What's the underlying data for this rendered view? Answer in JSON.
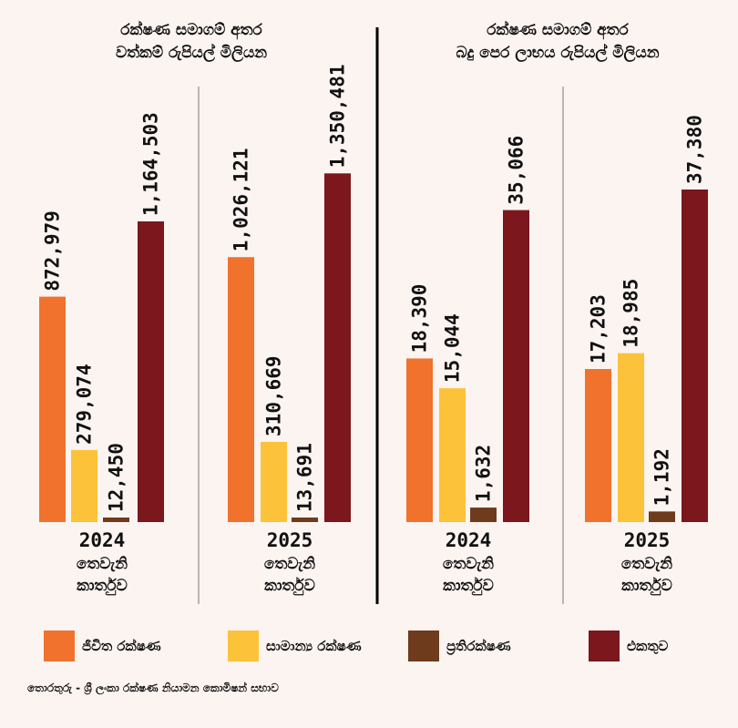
{
  "colors": {
    "background": "#fcf4f1",
    "life": "#f0722d",
    "general": "#fcc33a",
    "reinsurance": "#6e3b1d",
    "total": "#7b171d"
  },
  "legend": [
    {
      "key": "life",
      "label": "ජීවිත රක්ෂණ"
    },
    {
      "key": "general",
      "label": "සාමාන්‍ය රක්ෂණ"
    },
    {
      "key": "reinsurance",
      "label": "ප්‍රතිරක්ෂණ"
    },
    {
      "key": "total",
      "label": "එකතුව"
    }
  ],
  "source": "තොරතුරු - ශ්‍රී ලංකා රක්ෂණ නියාමන කොමිෂන් සභාව",
  "chart_data": [
    {
      "type": "bar",
      "title": [
        "රක්ෂණ සමාගම් අතර",
        "වත්කම් රුපියල් මිලියන"
      ],
      "ylim": [
        0,
        1400000
      ],
      "series": [
        "ජීවිත රක්ෂණ",
        "සාමාන්‍ය රක්ෂණ",
        "ප්‍රතිරක්ෂණ",
        "එකතුව"
      ],
      "groups": [
        {
          "year": "2024",
          "label": [
            "තෙවැනි",
            "කාර්තුව"
          ],
          "values": [
            872979,
            279074,
            12450,
            1164503
          ],
          "labels": [
            "872,979",
            "279,074",
            "12,450",
            "1,164,503"
          ]
        },
        {
          "year": "2025",
          "label": [
            "තෙවැනි",
            "කාර්තුව"
          ],
          "values": [
            1026121,
            310669,
            13691,
            1350481
          ],
          "labels": [
            "1,026,121",
            "310,669",
            "13,691",
            "1,350,481"
          ]
        }
      ]
    },
    {
      "type": "bar",
      "title": [
        "රක්ෂණ සමාගම් අතර",
        "බදු පෙර ලාභය රුපියල් මිලියන"
      ],
      "ylim": [
        0,
        41000
      ],
      "series": [
        "ජීවිත රක්ෂණ",
        "සාමාන්‍ය රක්ෂණ",
        "ප්‍රතිරක්ෂණ",
        "එකතුව"
      ],
      "groups": [
        {
          "year": "2024",
          "label": [
            "තෙවැනි",
            "කාර්තුව"
          ],
          "values": [
            18390,
            15044,
            1632,
            35066
          ],
          "labels": [
            "18,390",
            "15,044",
            "1,632",
            "35,066"
          ]
        },
        {
          "year": "2025",
          "label": [
            "තෙවැනි",
            "කාර්තුව"
          ],
          "values": [
            17203,
            18985,
            1192,
            37380
          ],
          "labels": [
            "17,203",
            "18,985",
            "1,192",
            "37,380"
          ]
        }
      ]
    }
  ]
}
